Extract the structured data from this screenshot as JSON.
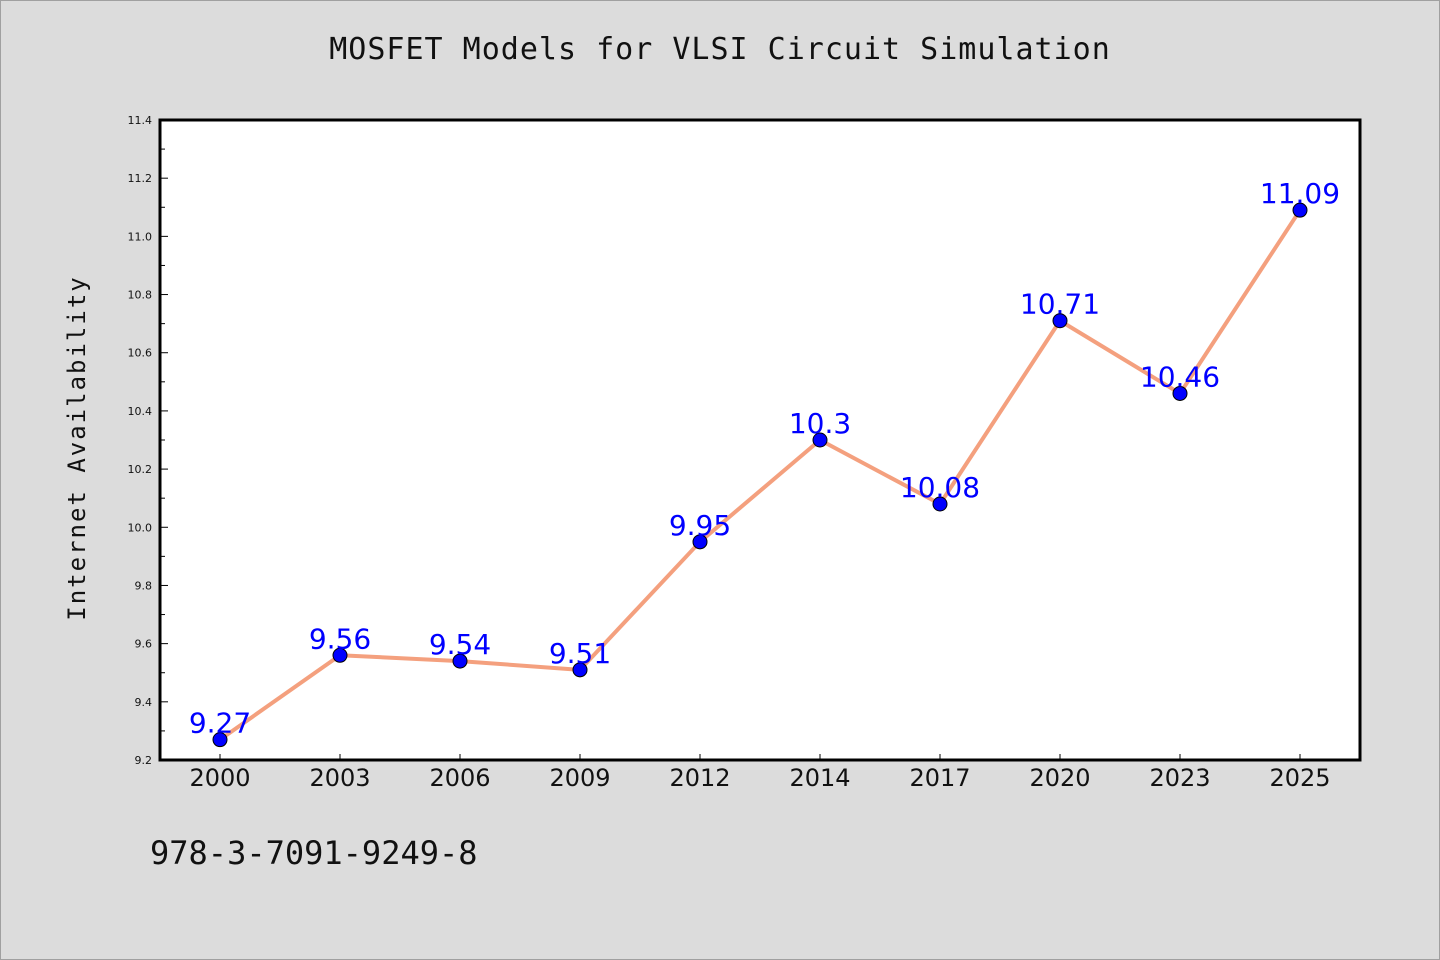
{
  "chart_data": {
    "type": "line",
    "title": "MOSFET Models for VLSI Circuit Simulation",
    "xlabel": "",
    "ylabel": "Internet Availability",
    "categories": [
      "2000",
      "2003",
      "2006",
      "2009",
      "2012",
      "2014",
      "2017",
      "2020",
      "2023",
      "2025"
    ],
    "series": [
      {
        "values": [
          9.27,
          9.56,
          9.54,
          9.51,
          9.95,
          10.3,
          10.08,
          10.71,
          10.46,
          11.09
        ],
        "labels": [
          "9.27",
          "9.56",
          "9.54",
          "9.51",
          "9.95",
          "10.3",
          "10.08",
          "10.71",
          "10.46",
          "11.09"
        ],
        "line_color": "#f4a07e",
        "marker_color": "#0000ff"
      }
    ],
    "ylim": [
      9.2,
      11.4
    ],
    "yticks": [
      "9.2",
      "9.4",
      "9.6",
      "9.8",
      "10.0",
      "10.2",
      "10.4",
      "10.6",
      "10.8",
      "11.0",
      "11.2",
      "11.4"
    ],
    "grid": false,
    "legend": "none",
    "background_color": "#dcdcdc",
    "plot_background_color": "#ffffff"
  },
  "footer": {
    "isbn": "978-3-7091-9249-8"
  }
}
